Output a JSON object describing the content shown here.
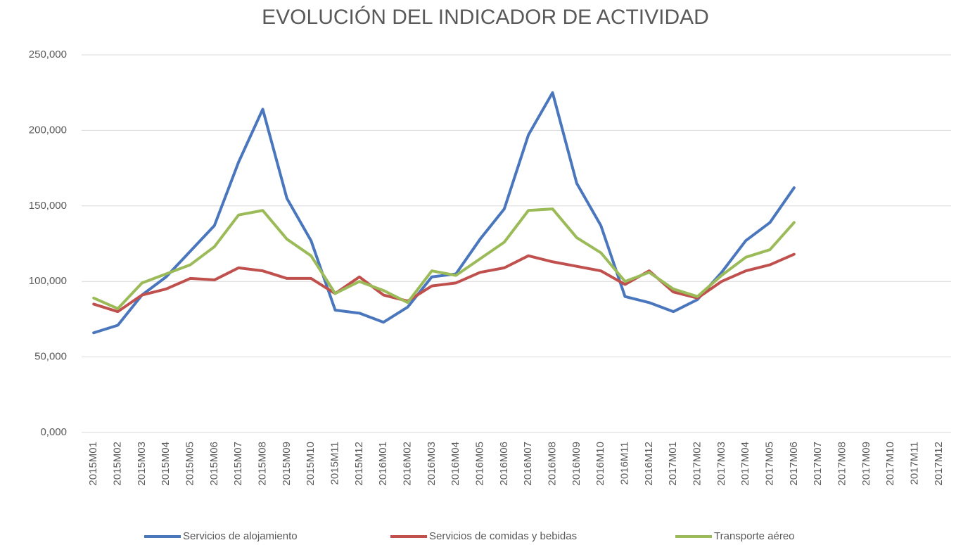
{
  "chart_data": {
    "type": "line",
    "title": "EVOLUCIÓN DEL INDICADOR DE ACTIVIDAD",
    "categories": [
      "2015M01",
      "2015M02",
      "2015M03",
      "2015M04",
      "2015M05",
      "2015M06",
      "2015M07",
      "2015M08",
      "2015M09",
      "2015M10",
      "2015M11",
      "2015M12",
      "2016M01",
      "2016M02",
      "2016M03",
      "2016M04",
      "2016M05",
      "2016M06",
      "2016M07",
      "2016M08",
      "2016M09",
      "2016M10",
      "2016M11",
      "2016M12",
      "2017M01",
      "2017M02",
      "2017M03",
      "2017M04",
      "2017M05",
      "2017M06",
      "2017M07",
      "2017M08",
      "2017M09",
      "2017M10",
      "2017M11",
      "2017M12"
    ],
    "series": [
      {
        "name": "Servicios de alojamiento",
        "color": "#4a76bd",
        "values": [
          66,
          71,
          91,
          103,
          120,
          137,
          179,
          214,
          155,
          127,
          81,
          79,
          73,
          83,
          103,
          105,
          128,
          148,
          197,
          225,
          165,
          137,
          90,
          86,
          80,
          88,
          106,
          127,
          139,
          162,
          null,
          null,
          null,
          null,
          null,
          null
        ]
      },
      {
        "name": "Servicios de comidas y bebidas",
        "color": "#c0504d",
        "values": [
          85,
          80,
          91,
          95,
          102,
          101,
          109,
          107,
          102,
          102,
          92,
          103,
          91,
          87,
          97,
          99,
          106,
          109,
          117,
          113,
          110,
          107,
          98,
          107,
          93,
          89,
          100,
          107,
          111,
          118,
          null,
          null,
          null,
          null,
          null,
          null
        ]
      },
      {
        "name": "Transporte aéreo",
        "color": "#9bbb59",
        "values": [
          89,
          82,
          99,
          105,
          111,
          123,
          144,
          147,
          128,
          117,
          92,
          100,
          94,
          86,
          107,
          104,
          115,
          126,
          147,
          148,
          129,
          119,
          100,
          106,
          95,
          90,
          104,
          116,
          121,
          139,
          null,
          null,
          null,
          null,
          null,
          null
        ]
      }
    ],
    "ylim": [
      0,
      250
    ],
    "yticks": [
      {
        "value": 0,
        "label": "0,000"
      },
      {
        "value": 50,
        "label": "50,000"
      },
      {
        "value": 100,
        "label": "100,000"
      },
      {
        "value": 150,
        "label": "150,000"
      },
      {
        "value": 200,
        "label": "200,000"
      },
      {
        "value": 250,
        "label": "250,000"
      }
    ],
    "grid": true
  }
}
